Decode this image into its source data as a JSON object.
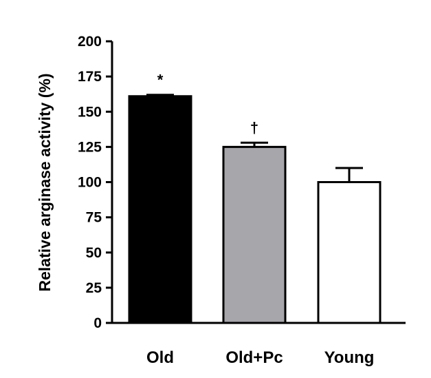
{
  "chart_data": {
    "type": "bar",
    "title": "",
    "xlabel": "",
    "ylabel": "Relative arginase activity (%)",
    "ylim": [
      0,
      200
    ],
    "yticks": [
      0,
      25,
      50,
      75,
      100,
      125,
      150,
      175,
      200
    ],
    "categories": [
      "Old",
      "Old+Pc",
      "Young"
    ],
    "values": [
      161,
      125,
      100
    ],
    "errors": [
      1,
      3,
      10
    ],
    "annotations": [
      "*",
      "†",
      ""
    ],
    "grid": false,
    "legend": "none",
    "colors": {
      "bars": [
        "#000000",
        "#a7a7ab",
        "#ffffff"
      ],
      "outline": "#000000"
    }
  }
}
